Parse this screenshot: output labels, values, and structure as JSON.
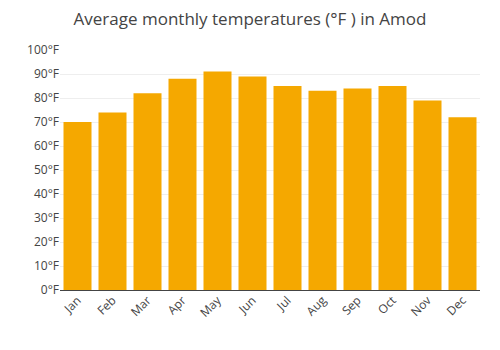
{
  "chart_data": {
    "type": "bar",
    "title": "Average monthly temperatures (°F ) in Amod",
    "categories": [
      "Jan",
      "Feb",
      "Mar",
      "Apr",
      "May",
      "Jun",
      "Jul",
      "Aug",
      "Sep",
      "Oct",
      "Nov",
      "Dec"
    ],
    "values": [
      70,
      74,
      82,
      88,
      91,
      89,
      85,
      83,
      84,
      85,
      79,
      72
    ],
    "color": "#F5A800",
    "ylim": [
      0,
      100
    ],
    "yticks": [
      {
        "value": 0,
        "label": "0°F"
      },
      {
        "value": 10,
        "label": "10°F"
      },
      {
        "value": 20,
        "label": "20°F"
      },
      {
        "value": 30,
        "label": "30°F"
      },
      {
        "value": 40,
        "label": "40°F"
      },
      {
        "value": 50,
        "label": "50°F"
      },
      {
        "value": 60,
        "label": "60°F"
      },
      {
        "value": 70,
        "label": "70°F"
      },
      {
        "value": 80,
        "label": "80°F"
      },
      {
        "value": 90,
        "label": "90°F"
      },
      {
        "value": 100,
        "label": "100°F"
      }
    ],
    "grid": true
  }
}
